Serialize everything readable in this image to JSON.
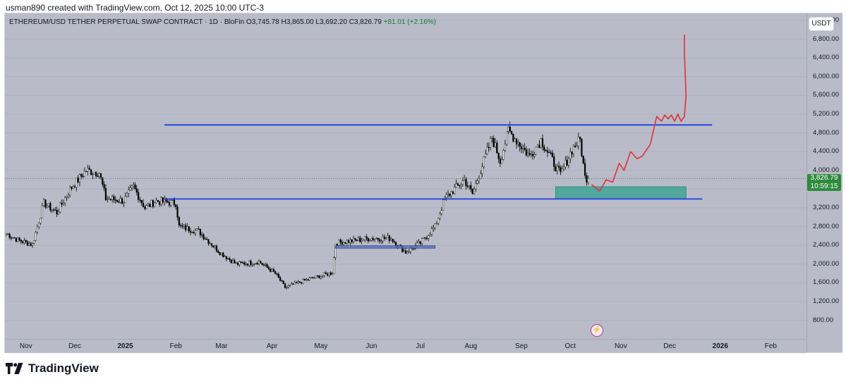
{
  "caption": "usman890 created with TradingView.com, Oct 12, 2025 10:00 UTC-3",
  "legend": {
    "symbol": "ETHEREUM/USD TETHER PERPETUAL SWAP CONTRACT · 1D · BloFin",
    "open": "O3,745.78",
    "high": "H3,865.00",
    "low": "L3,692.20",
    "close": "C3,826.79",
    "change": "+81.01 (+2.16%)"
  },
  "currency": "USDT",
  "last_price": {
    "value": "3,826.79",
    "countdown": "10:59:15"
  },
  "brand": "TradingView",
  "colors": {
    "background": "#b9bcc8",
    "up_candle": "#ffffff",
    "down_candle": "#000000",
    "horizontal_lines": "#1f3fe0",
    "projection_path": "#e0303a",
    "target_box": "#3fa596",
    "small_box": "#5a6fb5",
    "price_tag": "#2e8b3c"
  },
  "chart_data": {
    "type": "candlestick",
    "title": "ETHEREUM/USD TETHER PERPETUAL SWAP CONTRACT · 1D · BloFin",
    "ylabel": "USDT",
    "ylim": [
      800,
      7200
    ],
    "y_ticks": [
      "7,200.00",
      "6,800.00",
      "6,400.00",
      "6,000.00",
      "5,600.00",
      "5,200.00",
      "4,800.00",
      "4,400.00",
      "4,000.00",
      "3,600.00",
      "3,200.00",
      "2,800.00",
      "2,400.00",
      "2,000.00",
      "1,600.00",
      "1,200.00",
      "800.00"
    ],
    "x_ticks": [
      "Nov",
      "Dec",
      "2025",
      "Feb",
      "Mar",
      "Apr",
      "May",
      "Jun",
      "Jul",
      "Aug",
      "Sep",
      "Oct",
      "Nov",
      "Dec",
      "2026",
      "Feb"
    ],
    "x_start": "2024-10-20",
    "last_date": "2025-10-12",
    "price_path": [
      [
        "2024-10-20",
        2650
      ],
      [
        "2024-10-28",
        2500
      ],
      [
        "2024-11-05",
        2420
      ],
      [
        "2024-11-12",
        3300
      ],
      [
        "2024-11-20",
        3100
      ],
      [
        "2024-11-28",
        3600
      ],
      [
        "2024-12-08",
        4000
      ],
      [
        "2024-12-16",
        3950
      ],
      [
        "2024-12-20",
        3400
      ],
      [
        "2024-12-31",
        3350
      ],
      [
        "2025-01-06",
        3650
      ],
      [
        "2025-01-13",
        3200
      ],
      [
        "2025-01-20",
        3350
      ],
      [
        "2025-02-01",
        3300
      ],
      [
        "2025-02-03",
        2800
      ],
      [
        "2025-02-15",
        2700
      ],
      [
        "2025-02-28",
        2250
      ],
      [
        "2025-03-10",
        2000
      ],
      [
        "2025-03-24",
        2050
      ],
      [
        "2025-04-03",
        1800
      ],
      [
        "2025-04-09",
        1500
      ],
      [
        "2025-04-21",
        1650
      ],
      [
        "2025-05-08",
        1820
      ],
      [
        "2025-05-10",
        2450
      ],
      [
        "2025-05-31",
        2550
      ],
      [
        "2025-06-13",
        2550
      ],
      [
        "2025-06-22",
        2250
      ],
      [
        "2025-07-01",
        2450
      ],
      [
        "2025-07-10",
        2800
      ],
      [
        "2025-07-16",
        3400
      ],
      [
        "2025-07-28",
        3800
      ],
      [
        "2025-08-02",
        3500
      ],
      [
        "2025-08-09",
        4200
      ],
      [
        "2025-08-14",
        4700
      ],
      [
        "2025-08-19",
        4200
      ],
      [
        "2025-08-24",
        4850
      ],
      [
        "2025-09-06",
        4300
      ],
      [
        "2025-09-13",
        4650
      ],
      [
        "2025-09-25",
        3900
      ],
      [
        "2025-10-02",
        4450
      ],
      [
        "2025-10-07",
        4650
      ],
      [
        "2025-10-10",
        3850
      ],
      [
        "2025-10-12",
        3827
      ]
    ],
    "drawings": {
      "horizontal_lines": [
        {
          "y": 4970,
          "from": "2025-01-25",
          "to": "2025-12-27"
        },
        {
          "y": 3390,
          "from": "2025-01-25",
          "to": "2025-12-21"
        }
      ],
      "target_box": {
        "from": "2025-09-22",
        "to": "2025-12-11",
        "y_low": 3390,
        "y_high": 3650
      },
      "small_box": {
        "from": "2025-05-10",
        "to": "2025-07-10",
        "y_low": 2340,
        "y_high": 2390
      },
      "projection_path": [
        [
          "2025-10-14",
          3700
        ],
        [
          "2025-10-19",
          3560
        ],
        [
          "2025-10-23",
          3800
        ],
        [
          "2025-10-27",
          3750
        ],
        [
          "2025-10-31",
          4150
        ],
        [
          "2025-11-03",
          4000
        ],
        [
          "2025-11-07",
          4400
        ],
        [
          "2025-11-11",
          4250
        ],
        [
          "2025-11-14",
          4300
        ],
        [
          "2025-11-19",
          4550
        ],
        [
          "2025-11-23",
          5150
        ],
        [
          "2025-11-26",
          5050
        ],
        [
          "2025-11-28",
          5180
        ],
        [
          "2025-11-30",
          5100
        ],
        [
          "2025-12-02",
          5180
        ],
        [
          "2025-12-04",
          5050
        ],
        [
          "2025-12-06",
          5200
        ],
        [
          "2025-12-08",
          5050
        ],
        [
          "2025-12-10",
          5150
        ],
        [
          "2025-12-11",
          5600
        ],
        [
          "2025-12-10",
          6500
        ],
        [
          "2025-12-10",
          6900
        ]
      ]
    }
  }
}
